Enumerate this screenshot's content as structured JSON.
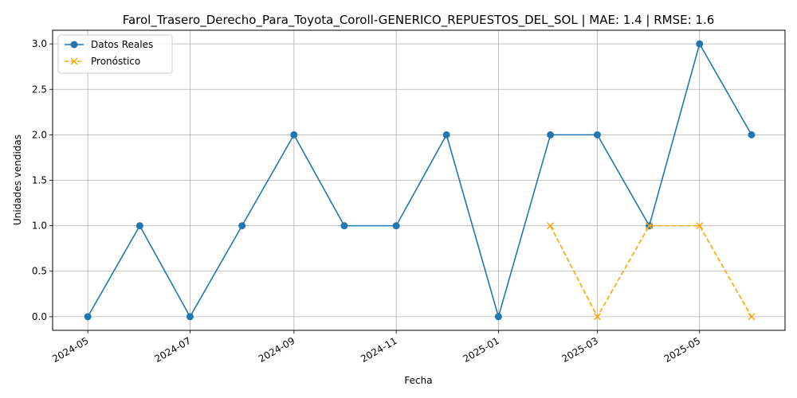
{
  "chart_data": {
    "type": "line",
    "title": "Farol_Trasero_Derecho_Para_Toyota_Coroll-GENERICO_REPUESTOS_DEL_SOL | MAE: 1.4 | RMSE: 1.6",
    "xlabel": "Fecha",
    "ylabel": "Unidades vendidas",
    "x_ticks": [
      "2024-05",
      "2024-07",
      "2024-09",
      "2024-11",
      "2025-01",
      "2025-03",
      "2025-05"
    ],
    "y_ticks": [
      "0.0",
      "0.5",
      "1.0",
      "1.5",
      "2.0",
      "2.5",
      "3.0"
    ],
    "ylim": [
      -0.15,
      3.15
    ],
    "xlim": [
      "2024-04-10",
      "2025-06-21"
    ],
    "grid": true,
    "legend_position": "top-left",
    "series": [
      {
        "name": "Datos Reales",
        "color": "#1f77b4",
        "line_style": "solid",
        "marker": "circle",
        "x": [
          "2024-05-01",
          "2024-06-01",
          "2024-07-01",
          "2024-08-01",
          "2024-09-01",
          "2024-10-01",
          "2024-11-01",
          "2024-12-01",
          "2025-01-01",
          "2025-02-01",
          "2025-03-01",
          "2025-04-01",
          "2025-05-01",
          "2025-06-01"
        ],
        "values": [
          0,
          1,
          0,
          1,
          2,
          1,
          1,
          2,
          0,
          2,
          2,
          1,
          3,
          2
        ]
      },
      {
        "name": "Pronóstico",
        "color": "#ffa500",
        "line_style": "dashed",
        "marker": "x",
        "x": [
          "2025-02-01",
          "2025-03-01",
          "2025-04-01",
          "2025-05-01",
          "2025-06-01"
        ],
        "values": [
          1,
          0,
          1,
          1,
          0
        ]
      }
    ]
  }
}
